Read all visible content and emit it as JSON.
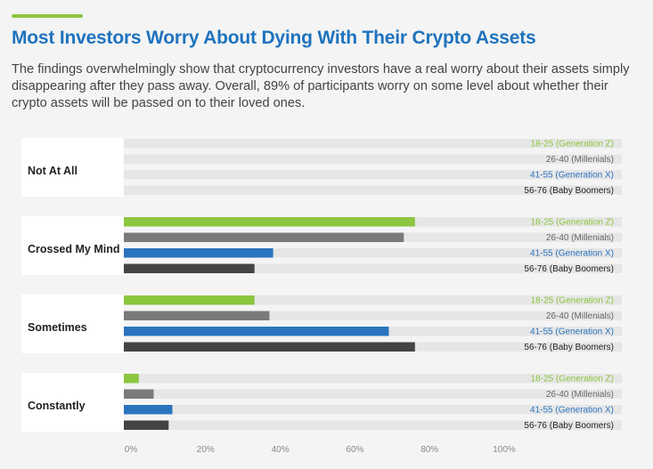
{
  "header": {
    "title": "Most Investors Worry About Dying With Their Crypto Assets",
    "subtitle": "The findings overwhelmingly show that cryptocurrency investors have a real worry about their assets simply disappearing after they pass away. Overall, 89% of participants worry on some level about whether their crypto assets will be passed on to their loved ones."
  },
  "colors": {
    "accent": "#8cc63f",
    "title": "#1e73be",
    "track": "#e6e6e6",
    "label_box": "#ffffff"
  },
  "chart_data": {
    "type": "bar",
    "orientation": "horizontal",
    "categories": [
      "Not At All",
      "Crossed My Mind",
      "Sometimes",
      "Constantly"
    ],
    "series": [
      {
        "name": "18-25 (Generation Z)",
        "color": "#8cc63f",
        "label_color": "#8cc63f",
        "values": [
          0,
          78,
          35,
          4
        ]
      },
      {
        "name": "26-40 (Millenials)",
        "color": "#7a7a7a",
        "label_color": "#666666",
        "values": [
          0,
          75,
          39,
          8
        ]
      },
      {
        "name": "41-55 (Generation X)",
        "color": "#2a74be",
        "label_color": "#2a74be",
        "values": [
          0,
          40,
          71,
          13
        ]
      },
      {
        "name": "56-76 (Baby Boomers)",
        "color": "#444444",
        "label_color": "#222222",
        "values": [
          0,
          35,
          78,
          12
        ]
      }
    ],
    "x_ticks": [
      "0%",
      "20%",
      "40%",
      "60%",
      "80%",
      "100%"
    ],
    "xlim": [
      0,
      100
    ],
    "grid": false,
    "legend": "series labels at right end of each bar track"
  }
}
